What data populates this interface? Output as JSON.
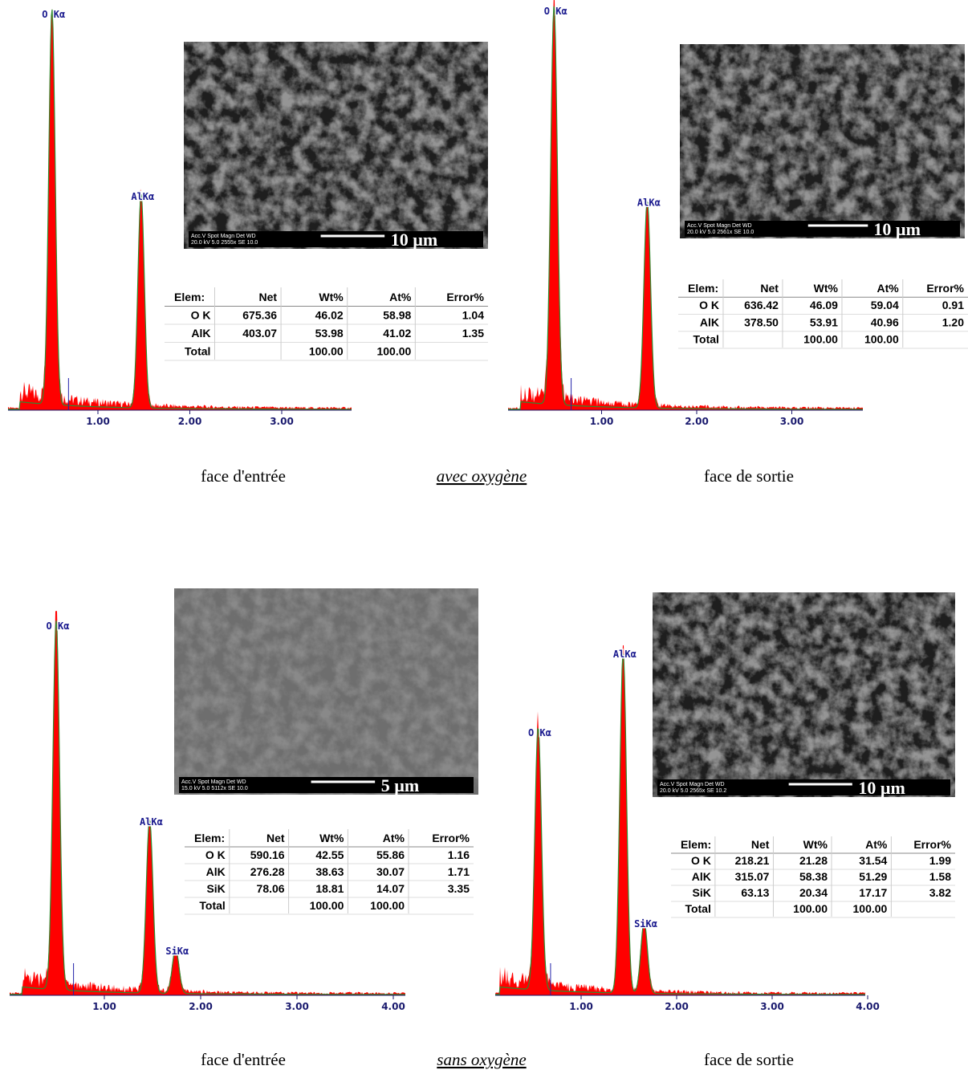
{
  "panels": [
    {
      "x_ticks": [
        {
          "value": 1,
          "label": "1.00"
        },
        {
          "value": 2,
          "label": "2.00"
        },
        {
          "value": 3,
          "label": "3.00"
        }
      ],
      "peaks": [
        {
          "label": "O Kα",
          "energy": 0.5,
          "intensity": 100
        },
        {
          "label": "AlKα",
          "energy": 1.47,
          "intensity": 54
        }
      ],
      "image": {
        "info": [
          "Acc.V  Spot Magn    Det  WD",
          "20.0 kV 5.0  2555x   SE   10.0"
        ],
        "scale": "10 µm"
      },
      "table": {
        "header": [
          "Elem:",
          "Net",
          "Wt%",
          "At%",
          "Error%"
        ],
        "rows": [
          [
            "O K",
            "675.36",
            "46.02",
            "58.98",
            "1.04"
          ],
          [
            "AlK",
            "403.07",
            "53.98",
            "41.02",
            "1.35"
          ],
          [
            "Total",
            null,
            "100.00",
            "100.00",
            null
          ]
        ]
      }
    },
    {
      "x_ticks": [
        {
          "value": 1,
          "label": "1.00"
        },
        {
          "value": 2,
          "label": "2.00"
        },
        {
          "value": 3,
          "label": "3.00"
        }
      ],
      "peaks": [
        {
          "label": "O Kα",
          "energy": 0.5,
          "intensity": 100
        },
        {
          "label": "AlKα",
          "energy": 1.48,
          "intensity": 52
        }
      ],
      "image": {
        "info": [
          "Acc.V  Spot Magn    Det  WD",
          "20.0 kV 5.0  2561x   SE   10.0"
        ],
        "scale": "10 µm"
      },
      "table": {
        "header": [
          "Elem:",
          "Net",
          "Wt%",
          "At%",
          "Error%"
        ],
        "rows": [
          [
            "O K",
            "636.42",
            "46.09",
            "59.04",
            "0.91"
          ],
          [
            "AlK",
            "378.50",
            "53.91",
            "40.96",
            "1.20"
          ],
          [
            "Total",
            null,
            "100.00",
            "100.00",
            null
          ]
        ]
      }
    },
    {
      "x_ticks": [
        {
          "value": 1,
          "label": "1.00"
        },
        {
          "value": 2,
          "label": "2.00"
        },
        {
          "value": 3,
          "label": "3.00"
        },
        {
          "value": 4,
          "label": "4.00"
        }
      ],
      "peaks": [
        {
          "label": "O Kα",
          "energy": 0.5,
          "intensity": 100
        },
        {
          "label": "AlKα",
          "energy": 1.47,
          "intensity": 47
        },
        {
          "label": "SiKα",
          "energy": 1.74,
          "intensity": 12
        }
      ],
      "image": {
        "info": [
          "Acc.V  Spot Magn    Det  WD",
          "15.0 kV 5.0  5112x   SE   10.0"
        ],
        "scale": "5 µm"
      },
      "table": {
        "header": [
          "Elem:",
          "Net",
          "Wt%",
          "At%",
          "Error%"
        ],
        "rows": [
          [
            "O K",
            "590.16",
            "42.55",
            "55.86",
            "1.16"
          ],
          [
            "AlK",
            "276.28",
            "38.63",
            "30.07",
            "1.71"
          ],
          [
            "SiK",
            "78.06",
            "18.81",
            "14.07",
            "3.35"
          ],
          [
            "Total",
            null,
            "100.00",
            "100.00",
            null
          ]
        ]
      }
    },
    {
      "x_ticks": [
        {
          "value": 1,
          "label": "1.00"
        },
        {
          "value": 2,
          "label": "2.00"
        },
        {
          "value": 3,
          "label": "3.00"
        },
        {
          "value": 4,
          "label": "4.00"
        }
      ],
      "peaks": [
        {
          "label": "O Kα",
          "energy": 0.55,
          "intensity": 77
        },
        {
          "label": "AlKα",
          "energy": 1.44,
          "intensity": 100
        },
        {
          "label": "SiKα",
          "energy": 1.66,
          "intensity": 21
        }
      ],
      "image": {
        "info": [
          "Acc.V  Spot Magn    Det  WD",
          "20.0 kV 5.0  2565x   SE   10.2"
        ],
        "scale": "10 µm"
      },
      "table": {
        "header": [
          "Elem:",
          "Net",
          "Wt%",
          "At%",
          "Error%"
        ],
        "rows": [
          [
            "O K",
            "218.21",
            "21.28",
            "31.54",
            "1.99"
          ],
          [
            "AlK",
            "315.07",
            "58.38",
            "51.29",
            "1.58"
          ],
          [
            "SiK",
            "63.13",
            "20.34",
            "17.17",
            "3.82"
          ],
          [
            "Total",
            null,
            "100.00",
            "100.00",
            null
          ]
        ]
      }
    }
  ],
  "captions": [
    {
      "left": "face d'entrée",
      "center": "avec oxygène",
      "right": "face de sortie"
    },
    {
      "left": "face d'entrée",
      "center": "sans oxygène",
      "right": "face de sortie"
    }
  ]
}
